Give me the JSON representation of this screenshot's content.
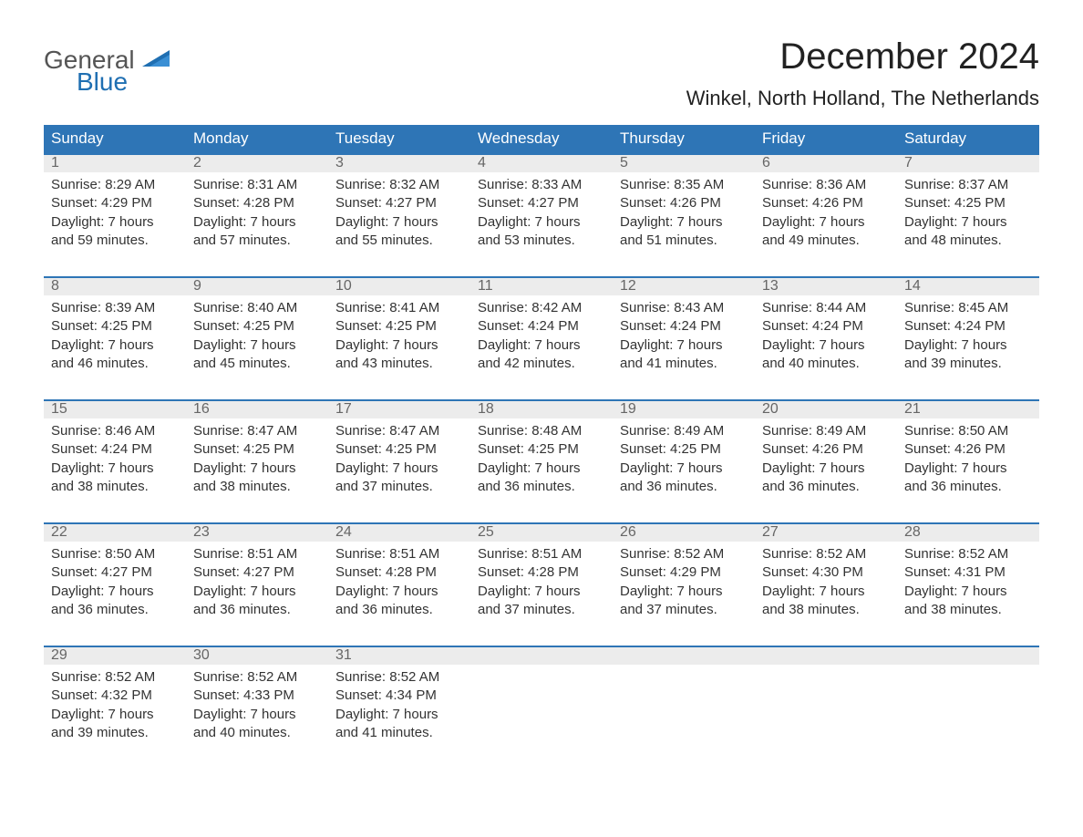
{
  "logo": {
    "general": "General",
    "blue": "Blue"
  },
  "title": "December 2024",
  "location": "Winkel, North Holland, The Netherlands",
  "colors": {
    "header_bg": "#2e75b6",
    "header_text": "#ffffff",
    "date_bg": "#ececec",
    "date_text": "#666666",
    "body_text": "#333333",
    "accent_border": "#2e75b6",
    "logo_gray": "#555555",
    "logo_blue": "#1f6fb2",
    "page_bg": "#ffffff"
  },
  "day_names": [
    "Sunday",
    "Monday",
    "Tuesday",
    "Wednesday",
    "Thursday",
    "Friday",
    "Saturday"
  ],
  "weeks": [
    [
      {
        "d": "1",
        "sr": "Sunrise: 8:29 AM",
        "ss": "Sunset: 4:29 PM",
        "dl1": "Daylight: 7 hours",
        "dl2": "and 59 minutes."
      },
      {
        "d": "2",
        "sr": "Sunrise: 8:31 AM",
        "ss": "Sunset: 4:28 PM",
        "dl1": "Daylight: 7 hours",
        "dl2": "and 57 minutes."
      },
      {
        "d": "3",
        "sr": "Sunrise: 8:32 AM",
        "ss": "Sunset: 4:27 PM",
        "dl1": "Daylight: 7 hours",
        "dl2": "and 55 minutes."
      },
      {
        "d": "4",
        "sr": "Sunrise: 8:33 AM",
        "ss": "Sunset: 4:27 PM",
        "dl1": "Daylight: 7 hours",
        "dl2": "and 53 minutes."
      },
      {
        "d": "5",
        "sr": "Sunrise: 8:35 AM",
        "ss": "Sunset: 4:26 PM",
        "dl1": "Daylight: 7 hours",
        "dl2": "and 51 minutes."
      },
      {
        "d": "6",
        "sr": "Sunrise: 8:36 AM",
        "ss": "Sunset: 4:26 PM",
        "dl1": "Daylight: 7 hours",
        "dl2": "and 49 minutes."
      },
      {
        "d": "7",
        "sr": "Sunrise: 8:37 AM",
        "ss": "Sunset: 4:25 PM",
        "dl1": "Daylight: 7 hours",
        "dl2": "and 48 minutes."
      }
    ],
    [
      {
        "d": "8",
        "sr": "Sunrise: 8:39 AM",
        "ss": "Sunset: 4:25 PM",
        "dl1": "Daylight: 7 hours",
        "dl2": "and 46 minutes."
      },
      {
        "d": "9",
        "sr": "Sunrise: 8:40 AM",
        "ss": "Sunset: 4:25 PM",
        "dl1": "Daylight: 7 hours",
        "dl2": "and 45 minutes."
      },
      {
        "d": "10",
        "sr": "Sunrise: 8:41 AM",
        "ss": "Sunset: 4:25 PM",
        "dl1": "Daylight: 7 hours",
        "dl2": "and 43 minutes."
      },
      {
        "d": "11",
        "sr": "Sunrise: 8:42 AM",
        "ss": "Sunset: 4:24 PM",
        "dl1": "Daylight: 7 hours",
        "dl2": "and 42 minutes."
      },
      {
        "d": "12",
        "sr": "Sunrise: 8:43 AM",
        "ss": "Sunset: 4:24 PM",
        "dl1": "Daylight: 7 hours",
        "dl2": "and 41 minutes."
      },
      {
        "d": "13",
        "sr": "Sunrise: 8:44 AM",
        "ss": "Sunset: 4:24 PM",
        "dl1": "Daylight: 7 hours",
        "dl2": "and 40 minutes."
      },
      {
        "d": "14",
        "sr": "Sunrise: 8:45 AM",
        "ss": "Sunset: 4:24 PM",
        "dl1": "Daylight: 7 hours",
        "dl2": "and 39 minutes."
      }
    ],
    [
      {
        "d": "15",
        "sr": "Sunrise: 8:46 AM",
        "ss": "Sunset: 4:24 PM",
        "dl1": "Daylight: 7 hours",
        "dl2": "and 38 minutes."
      },
      {
        "d": "16",
        "sr": "Sunrise: 8:47 AM",
        "ss": "Sunset: 4:25 PM",
        "dl1": "Daylight: 7 hours",
        "dl2": "and 38 minutes."
      },
      {
        "d": "17",
        "sr": "Sunrise: 8:47 AM",
        "ss": "Sunset: 4:25 PM",
        "dl1": "Daylight: 7 hours",
        "dl2": "and 37 minutes."
      },
      {
        "d": "18",
        "sr": "Sunrise: 8:48 AM",
        "ss": "Sunset: 4:25 PM",
        "dl1": "Daylight: 7 hours",
        "dl2": "and 36 minutes."
      },
      {
        "d": "19",
        "sr": "Sunrise: 8:49 AM",
        "ss": "Sunset: 4:25 PM",
        "dl1": "Daylight: 7 hours",
        "dl2": "and 36 minutes."
      },
      {
        "d": "20",
        "sr": "Sunrise: 8:49 AM",
        "ss": "Sunset: 4:26 PM",
        "dl1": "Daylight: 7 hours",
        "dl2": "and 36 minutes."
      },
      {
        "d": "21",
        "sr": "Sunrise: 8:50 AM",
        "ss": "Sunset: 4:26 PM",
        "dl1": "Daylight: 7 hours",
        "dl2": "and 36 minutes."
      }
    ],
    [
      {
        "d": "22",
        "sr": "Sunrise: 8:50 AM",
        "ss": "Sunset: 4:27 PM",
        "dl1": "Daylight: 7 hours",
        "dl2": "and 36 minutes."
      },
      {
        "d": "23",
        "sr": "Sunrise: 8:51 AM",
        "ss": "Sunset: 4:27 PM",
        "dl1": "Daylight: 7 hours",
        "dl2": "and 36 minutes."
      },
      {
        "d": "24",
        "sr": "Sunrise: 8:51 AM",
        "ss": "Sunset: 4:28 PM",
        "dl1": "Daylight: 7 hours",
        "dl2": "and 36 minutes."
      },
      {
        "d": "25",
        "sr": "Sunrise: 8:51 AM",
        "ss": "Sunset: 4:28 PM",
        "dl1": "Daylight: 7 hours",
        "dl2": "and 37 minutes."
      },
      {
        "d": "26",
        "sr": "Sunrise: 8:52 AM",
        "ss": "Sunset: 4:29 PM",
        "dl1": "Daylight: 7 hours",
        "dl2": "and 37 minutes."
      },
      {
        "d": "27",
        "sr": "Sunrise: 8:52 AM",
        "ss": "Sunset: 4:30 PM",
        "dl1": "Daylight: 7 hours",
        "dl2": "and 38 minutes."
      },
      {
        "d": "28",
        "sr": "Sunrise: 8:52 AM",
        "ss": "Sunset: 4:31 PM",
        "dl1": "Daylight: 7 hours",
        "dl2": "and 38 minutes."
      }
    ],
    [
      {
        "d": "29",
        "sr": "Sunrise: 8:52 AM",
        "ss": "Sunset: 4:32 PM",
        "dl1": "Daylight: 7 hours",
        "dl2": "and 39 minutes."
      },
      {
        "d": "30",
        "sr": "Sunrise: 8:52 AM",
        "ss": "Sunset: 4:33 PM",
        "dl1": "Daylight: 7 hours",
        "dl2": "and 40 minutes."
      },
      {
        "d": "31",
        "sr": "Sunrise: 8:52 AM",
        "ss": "Sunset: 4:34 PM",
        "dl1": "Daylight: 7 hours",
        "dl2": "and 41 minutes."
      },
      null,
      null,
      null,
      null
    ]
  ]
}
